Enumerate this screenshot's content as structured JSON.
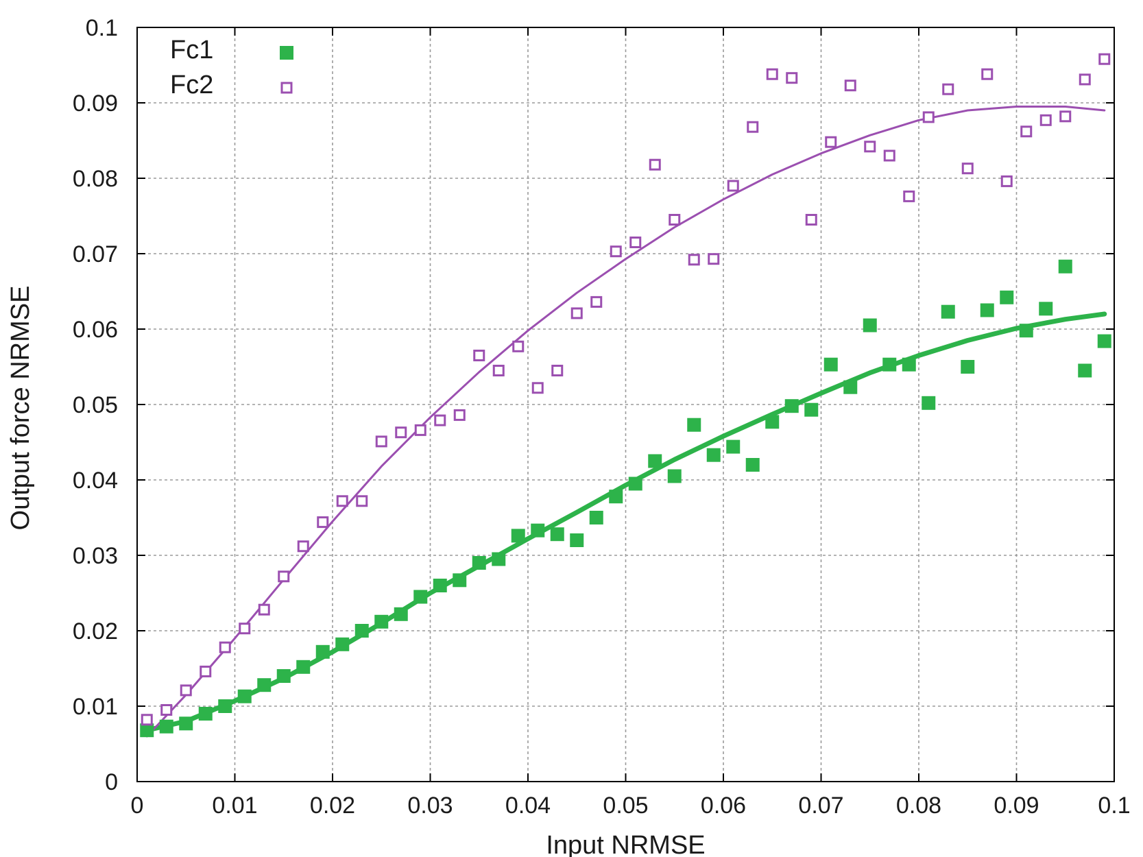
{
  "chart_data": {
    "type": "scatter",
    "title": "",
    "xlabel": "Input NRMSE",
    "ylabel": "Output force NRMSE",
    "xlim": [
      0,
      0.1
    ],
    "ylim": [
      0,
      0.1
    ],
    "x_ticks": [
      "0",
      "0.01",
      "0.02",
      "0.03",
      "0.04",
      "0.05",
      "0.06",
      "0.07",
      "0.08",
      "0.09",
      "0.1"
    ],
    "y_ticks": [
      "0",
      "0.01",
      "0.02",
      "0.03",
      "0.04",
      "0.05",
      "0.06",
      "0.07",
      "0.08",
      "0.09",
      "0.1"
    ],
    "grid": true,
    "legend_position": "top-left",
    "series": [
      {
        "name": "Fc1",
        "marker": "filled-square",
        "color": "#2db34a",
        "x": [
          0.001,
          0.003,
          0.005,
          0.007,
          0.009,
          0.011,
          0.013,
          0.015,
          0.017,
          0.019,
          0.021,
          0.023,
          0.025,
          0.027,
          0.029,
          0.031,
          0.033,
          0.035,
          0.037,
          0.039,
          0.041,
          0.043,
          0.045,
          0.047,
          0.049,
          0.051,
          0.053,
          0.055,
          0.057,
          0.059,
          0.061,
          0.063,
          0.065,
          0.067,
          0.069,
          0.071,
          0.073,
          0.075,
          0.077,
          0.079,
          0.081,
          0.083,
          0.085,
          0.087,
          0.089,
          0.091,
          0.093,
          0.095,
          0.097,
          0.099
        ],
        "y": [
          0.0068,
          0.0073,
          0.0077,
          0.009,
          0.01,
          0.0113,
          0.0128,
          0.014,
          0.0152,
          0.0172,
          0.0182,
          0.02,
          0.0212,
          0.0222,
          0.0245,
          0.026,
          0.0267,
          0.029,
          0.0295,
          0.0326,
          0.0333,
          0.0328,
          0.032,
          0.035,
          0.0378,
          0.0395,
          0.0425,
          0.0405,
          0.0473,
          0.0433,
          0.0444,
          0.042,
          0.0477,
          0.0498,
          0.0493,
          0.0553,
          0.0523,
          0.0605,
          0.0553,
          0.0553,
          0.0502,
          0.0623,
          0.055,
          0.0625,
          0.0642,
          0.0598,
          0.0627,
          0.0683,
          0.0545,
          0.0584
        ],
        "fit": {
          "x": [
            0.001,
            0.005,
            0.01,
            0.015,
            0.02,
            0.025,
            0.03,
            0.035,
            0.04,
            0.045,
            0.05,
            0.055,
            0.06,
            0.065,
            0.07,
            0.075,
            0.08,
            0.085,
            0.09,
            0.095,
            0.099
          ],
          "y": [
            0.0068,
            0.008,
            0.0107,
            0.0137,
            0.0172,
            0.021,
            0.025,
            0.0286,
            0.0322,
            0.0357,
            0.0393,
            0.0427,
            0.0458,
            0.0487,
            0.0515,
            0.0542,
            0.0565,
            0.0585,
            0.0601,
            0.0613,
            0.062
          ]
        }
      },
      {
        "name": "Fc2",
        "marker": "open-square",
        "color": "#9b4fb0",
        "x": [
          0.001,
          0.003,
          0.005,
          0.007,
          0.009,
          0.011,
          0.013,
          0.015,
          0.017,
          0.019,
          0.021,
          0.023,
          0.025,
          0.027,
          0.029,
          0.031,
          0.033,
          0.035,
          0.037,
          0.039,
          0.041,
          0.043,
          0.045,
          0.047,
          0.049,
          0.051,
          0.053,
          0.055,
          0.057,
          0.059,
          0.061,
          0.063,
          0.065,
          0.067,
          0.069,
          0.071,
          0.073,
          0.075,
          0.077,
          0.079,
          0.081,
          0.083,
          0.085,
          0.087,
          0.089,
          0.091,
          0.093,
          0.095,
          0.097,
          0.099
        ],
        "y": [
          0.0082,
          0.0095,
          0.0121,
          0.0146,
          0.0178,
          0.0203,
          0.0228,
          0.0272,
          0.0312,
          0.0344,
          0.0372,
          0.0372,
          0.0451,
          0.0463,
          0.0466,
          0.0479,
          0.0486,
          0.0565,
          0.0545,
          0.0577,
          0.0522,
          0.0545,
          0.0621,
          0.0636,
          0.0703,
          0.0715,
          0.0818,
          0.0745,
          0.0692,
          0.0693,
          0.079,
          0.0868,
          0.0938,
          0.0933,
          0.0745,
          0.0848,
          0.0923,
          0.0842,
          0.083,
          0.0776,
          0.0881,
          0.0918,
          0.0813,
          0.0938,
          0.0796,
          0.0862,
          0.0877,
          0.0882,
          0.0931,
          0.0958
        ],
        "fit": {
          "x": [
            0.001,
            0.005,
            0.01,
            0.015,
            0.02,
            0.025,
            0.03,
            0.035,
            0.04,
            0.045,
            0.05,
            0.055,
            0.06,
            0.065,
            0.07,
            0.075,
            0.08,
            0.085,
            0.09,
            0.095,
            0.099
          ],
          "y": [
            0.006,
            0.0115,
            0.019,
            0.0268,
            0.0345,
            0.0418,
            0.0483,
            0.0543,
            0.0598,
            0.0648,
            0.0693,
            0.0735,
            0.0772,
            0.0805,
            0.0833,
            0.0857,
            0.0877,
            0.089,
            0.0895,
            0.0895,
            0.089
          ]
        }
      }
    ]
  }
}
